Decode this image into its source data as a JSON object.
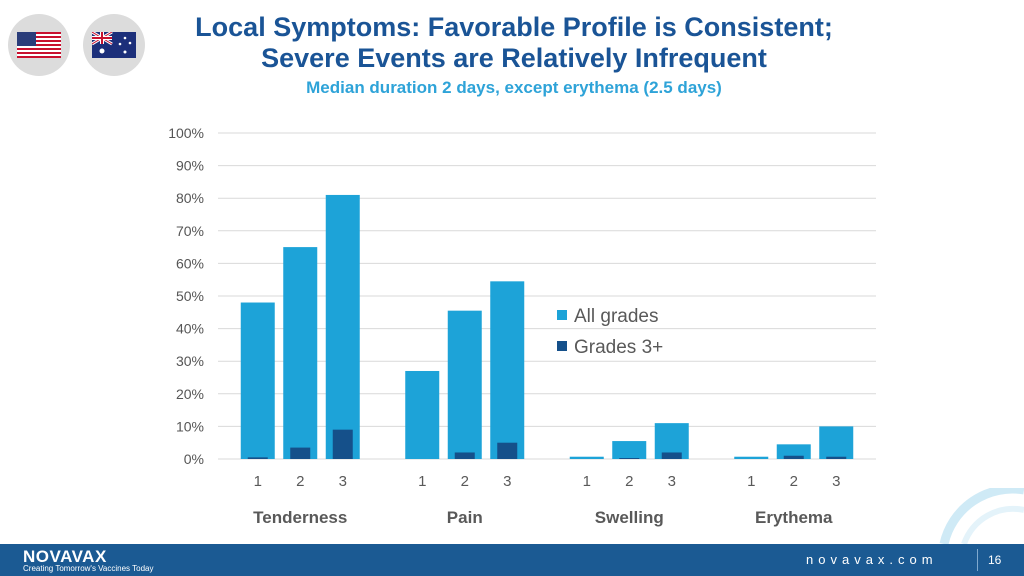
{
  "header": {
    "title_line1": "Local Symptoms: Favorable Profile is Consistent;",
    "title_line2": "Severe Events are Relatively Infrequent",
    "subtitle": "Median duration 2 days, except erythema (2.5 days)"
  },
  "flags": [
    "us-flag-icon",
    "australia-flag-icon"
  ],
  "colors": {
    "all_grades": "#1da3d8",
    "grades3": "#15508a",
    "title": "#1a5496",
    "subtitle": "#2ea3d8",
    "footer": "#1b5a93"
  },
  "chart_data": {
    "type": "bar",
    "ylim": [
      0,
      100
    ],
    "yticks": [
      "0%",
      "10%",
      "20%",
      "30%",
      "40%",
      "50%",
      "60%",
      "70%",
      "80%",
      "90%",
      "100%"
    ],
    "legend_position": "right-center",
    "grid": true,
    "groups": [
      {
        "name": "Tenderness",
        "categories": [
          "1",
          "2",
          "3"
        ],
        "all_grades": [
          48,
          65,
          81
        ],
        "grades3": [
          0.5,
          3.5,
          9
        ]
      },
      {
        "name": "Pain",
        "categories": [
          "1",
          "2",
          "3"
        ],
        "all_grades": [
          27,
          45.5,
          54.5
        ],
        "grades3": [
          0,
          2,
          5
        ]
      },
      {
        "name": "Swelling",
        "categories": [
          "1",
          "2",
          "3"
        ],
        "all_grades": [
          0.7,
          5.5,
          11
        ],
        "grades3": [
          0,
          0.3,
          2
        ]
      },
      {
        "name": "Erythema",
        "categories": [
          "1",
          "2",
          "3"
        ],
        "all_grades": [
          0.7,
          4.5,
          10
        ],
        "grades3": [
          0,
          1,
          0.7
        ]
      }
    ],
    "series": [
      {
        "key": "all_grades",
        "name": "All grades"
      },
      {
        "key": "grades3",
        "name": "Grades 3+"
      }
    ]
  },
  "footer": {
    "brand": "NOVAVAX",
    "tagline": "Creating Tomorrow's Vaccines Today",
    "website": "novavax.com",
    "page_number": "16"
  }
}
